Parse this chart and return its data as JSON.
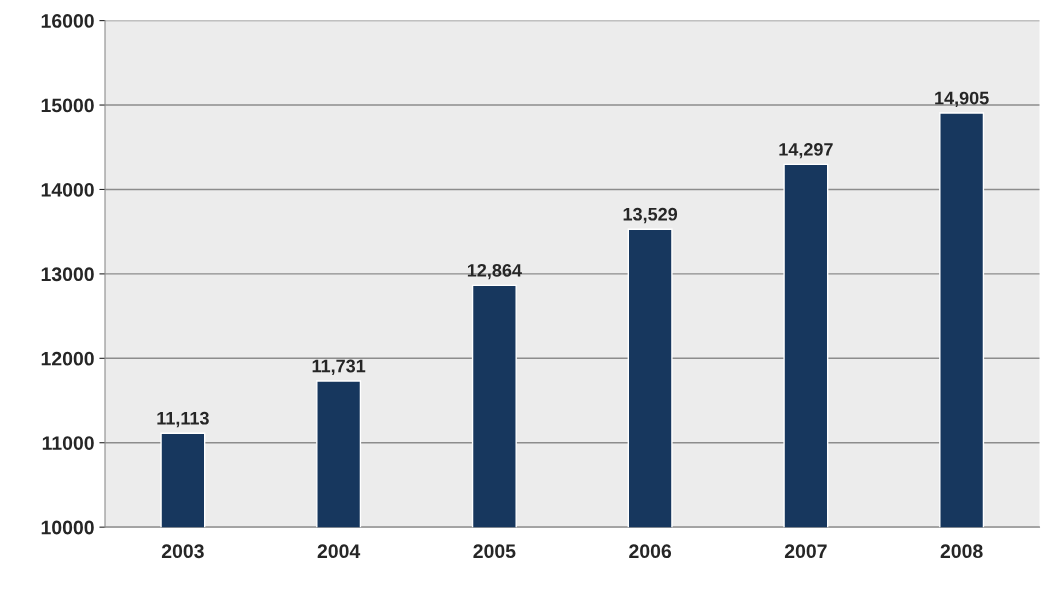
{
  "chart_data": {
    "type": "bar",
    "categories": [
      "2003",
      "2004",
      "2005",
      "2006",
      "2007",
      "2008"
    ],
    "values": [
      11113,
      11731,
      12864,
      13529,
      14297,
      14905
    ],
    "value_labels": [
      "11,113",
      "11,731",
      "12,864",
      "13,529",
      "14,297",
      "14,905"
    ],
    "color": "#17375e",
    "ylim": [
      10000,
      16000
    ],
    "yticks": [
      10000,
      11000,
      12000,
      13000,
      14000,
      15000,
      16000
    ],
    "grid": "y",
    "legend": false
  }
}
